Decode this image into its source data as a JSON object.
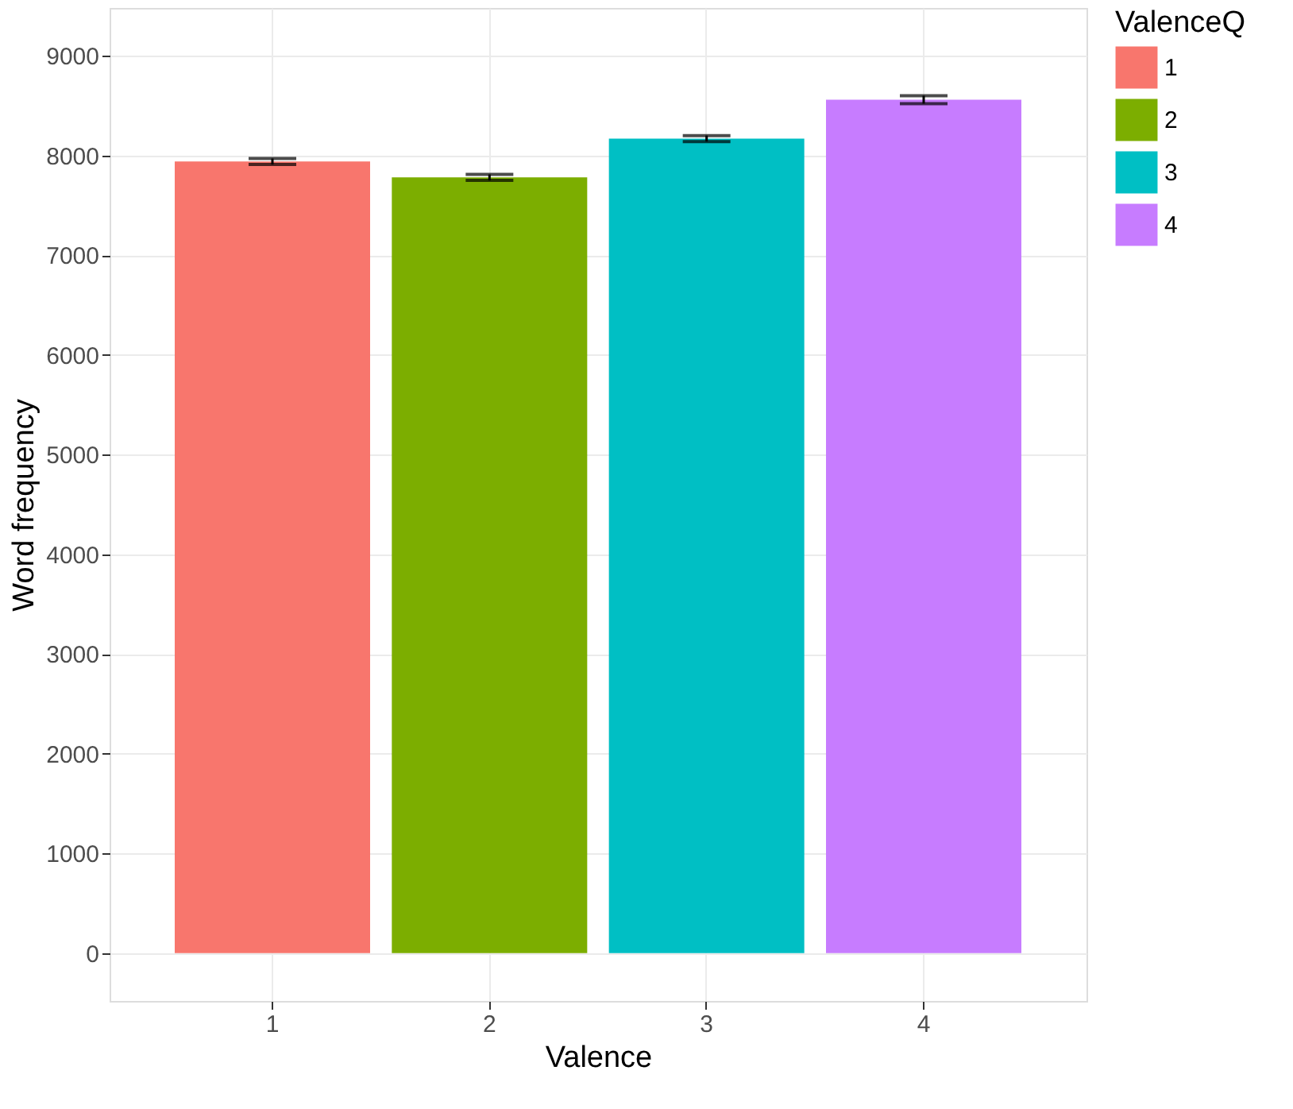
{
  "chart_data": {
    "type": "bar",
    "xlabel": "Valence",
    "ylabel": "Word frequency",
    "legend_title": "ValenceQ",
    "categories": [
      "1",
      "2",
      "3",
      "4"
    ],
    "stacked": true,
    "series": [
      {
        "name": "1",
        "color": "#f8766d",
        "values": [
          7940,
          null,
          null,
          null
        ],
        "errors": [
          30,
          null,
          null,
          null
        ]
      },
      {
        "name": "2",
        "color": "#7cae00",
        "values": [
          null,
          7780,
          null,
          null
        ],
        "errors": [
          null,
          30,
          null,
          null
        ]
      },
      {
        "name": "3",
        "color": "#00bfc4",
        "values": [
          null,
          null,
          8170,
          null
        ],
        "errors": [
          null,
          null,
          30,
          null
        ]
      },
      {
        "name": "4",
        "color": "#c77cff",
        "values": [
          null,
          null,
          null,
          8560
        ],
        "errors": [
          null,
          null,
          null,
          40
        ]
      }
    ],
    "ylim": [
      -480,
      9480
    ],
    "yticks": [
      0,
      1000,
      2000,
      3000,
      4000,
      5000,
      6000,
      7000,
      8000,
      9000
    ],
    "grid": true,
    "legend": "right"
  }
}
